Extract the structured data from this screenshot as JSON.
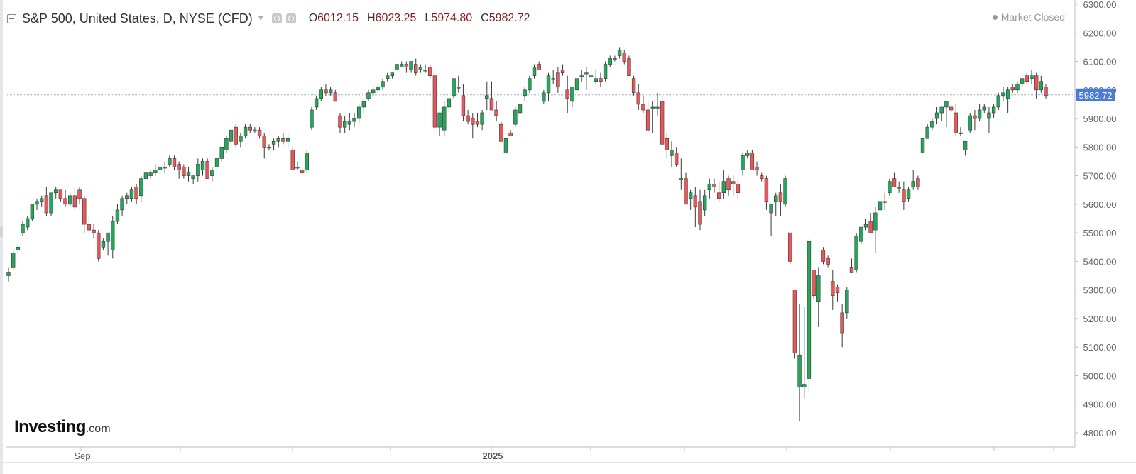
{
  "header": {
    "title": "S&P 500, United States, D, NYSE (CFD)",
    "open_label": "O",
    "open": "6012.15",
    "high_label": "H",
    "high": "6023.25",
    "low_label": "L",
    "low": "5974.80",
    "close_label": "C",
    "close": "5982.72"
  },
  "status": {
    "market": "Market Closed"
  },
  "logo": {
    "brand": "Investing",
    "suffix": ".com"
  },
  "icons": [
    "collapse-icon",
    "dropdown-caret-icon",
    "eye-icon",
    "settings-icon",
    "status-dot-icon"
  ],
  "colors": {
    "up": "#26a65b",
    "down": "#e8585b",
    "price_tag": "#4a7bd8",
    "price_line": "#9aa7e8",
    "ohlc_values": "#8b1a1a"
  },
  "chart_data": {
    "type": "candlestick",
    "title": "S&P 500, United States, D, NYSE (CFD)",
    "ylim": [
      4750,
      6300
    ],
    "y_ticks": [
      "6300.00",
      "6200.00",
      "6100.00",
      "6000.00",
      "5900.00",
      "5800.00",
      "5700.00",
      "5600.00",
      "5500.00",
      "5400.00",
      "5300.00",
      "5200.00",
      "5100.00",
      "5000.00",
      "4900.00",
      "4800.00"
    ],
    "x_labels": [
      "Sep",
      "2025"
    ],
    "last_price": "5982.72",
    "grid": false,
    "candles": [
      [
        5350,
        5380,
        5330,
        5360
      ],
      [
        5380,
        5440,
        5370,
        5430
      ],
      [
        5440,
        5460,
        5430,
        5450
      ],
      [
        5500,
        5540,
        5490,
        5530
      ],
      [
        5520,
        5560,
        5510,
        5550
      ],
      [
        5550,
        5600,
        5540,
        5600
      ],
      [
        5600,
        5620,
        5580,
        5610
      ],
      [
        5610,
        5630,
        5590,
        5620
      ],
      [
        5630,
        5660,
        5560,
        5570
      ],
      [
        5570,
        5640,
        5560,
        5640
      ],
      [
        5640,
        5660,
        5620,
        5650
      ],
      [
        5650,
        5650,
        5610,
        5620
      ],
      [
        5620,
        5650,
        5590,
        5600
      ],
      [
        5600,
        5640,
        5590,
        5630
      ],
      [
        5630,
        5660,
        5580,
        5590
      ],
      [
        5650,
        5660,
        5600,
        5620
      ],
      [
        5620,
        5630,
        5500,
        5530
      ],
      [
        5530,
        5560,
        5500,
        5510
      ],
      [
        5510,
        5530,
        5480,
        5500
      ],
      [
        5500,
        5510,
        5400,
        5410
      ],
      [
        5450,
        5480,
        5440,
        5470
      ],
      [
        5470,
        5500,
        5420,
        5500
      ],
      [
        5440,
        5560,
        5410,
        5540
      ],
      [
        5540,
        5600,
        5530,
        5580
      ],
      [
        5580,
        5630,
        5560,
        5620
      ],
      [
        5620,
        5640,
        5600,
        5630
      ],
      [
        5620,
        5660,
        5610,
        5650
      ],
      [
        5660,
        5670,
        5600,
        5620
      ],
      [
        5630,
        5700,
        5610,
        5690
      ],
      [
        5690,
        5720,
        5680,
        5710
      ],
      [
        5700,
        5720,
        5690,
        5710
      ],
      [
        5710,
        5740,
        5700,
        5720
      ],
      [
        5720,
        5740,
        5700,
        5730
      ],
      [
        5730,
        5750,
        5710,
        5730
      ],
      [
        5740,
        5770,
        5730,
        5760
      ],
      [
        5760,
        5770,
        5720,
        5730
      ],
      [
        5740,
        5750,
        5690,
        5720
      ],
      [
        5730,
        5740,
        5690,
        5700
      ],
      [
        5700,
        5730,
        5680,
        5710
      ],
      [
        5690,
        5700,
        5670,
        5700
      ],
      [
        5700,
        5760,
        5680,
        5740
      ],
      [
        5720,
        5760,
        5700,
        5750
      ],
      [
        5750,
        5760,
        5690,
        5690
      ],
      [
        5700,
        5730,
        5680,
        5720
      ],
      [
        5730,
        5780,
        5710,
        5760
      ],
      [
        5760,
        5800,
        5750,
        5800
      ],
      [
        5790,
        5840,
        5780,
        5830
      ],
      [
        5820,
        5870,
        5810,
        5860
      ],
      [
        5870,
        5880,
        5800,
        5810
      ],
      [
        5820,
        5850,
        5800,
        5840
      ],
      [
        5840,
        5880,
        5830,
        5870
      ],
      [
        5870,
        5880,
        5850,
        5860
      ],
      [
        5860,
        5870,
        5850,
        5860
      ],
      [
        5860,
        5870,
        5830,
        5840
      ],
      [
        5840,
        5850,
        5760,
        5800
      ],
      [
        5800,
        5810,
        5790,
        5800
      ],
      [
        5810,
        5830,
        5790,
        5820
      ],
      [
        5820,
        5840,
        5800,
        5830
      ],
      [
        5830,
        5850,
        5810,
        5820
      ],
      [
        5820,
        5850,
        5800,
        5830
      ],
      [
        5790,
        5800,
        5720,
        5720
      ],
      [
        5730,
        5750,
        5720,
        5730
      ],
      [
        5720,
        5730,
        5700,
        5710
      ],
      [
        5720,
        5790,
        5710,
        5780
      ],
      [
        5870,
        5940,
        5860,
        5930
      ],
      [
        5940,
        5980,
        5930,
        5970
      ],
      [
        5970,
        6010,
        5960,
        6000
      ],
      [
        6000,
        6020,
        5980,
        5990
      ],
      [
        5990,
        6010,
        5980,
        6000
      ],
      [
        5990,
        6000,
        5960,
        5960
      ],
      [
        5910,
        5920,
        5850,
        5870
      ],
      [
        5870,
        5910,
        5850,
        5890
      ],
      [
        5880,
        5920,
        5860,
        5890
      ],
      [
        5890,
        5920,
        5870,
        5900
      ],
      [
        5900,
        5950,
        5880,
        5940
      ],
      [
        5940,
        5970,
        5920,
        5960
      ],
      [
        5970,
        6000,
        5960,
        5990
      ],
      [
        5990,
        6010,
        5980,
        6000
      ],
      [
        6000,
        6020,
        5990,
        6010
      ],
      [
        6010,
        6040,
        6000,
        6030
      ],
      [
        6040,
        6060,
        6030,
        6050
      ],
      [
        6050,
        6060,
        6040,
        6060
      ],
      [
        6070,
        6090,
        6070,
        6090
      ],
      [
        6080,
        6100,
        6080,
        6090
      ],
      [
        6090,
        6100,
        6060,
        6080
      ],
      [
        6070,
        6100,
        6060,
        6100
      ],
      [
        6090,
        6110,
        6050,
        6060
      ],
      [
        6070,
        6090,
        6060,
        6080
      ],
      [
        6070,
        6090,
        6060,
        6070
      ],
      [
        6080,
        6090,
        6040,
        6050
      ],
      [
        6050,
        6070,
        5860,
        5870
      ],
      [
        5870,
        5920,
        5840,
        5920
      ],
      [
        5860,
        5960,
        5840,
        5940
      ],
      [
        5940,
        5970,
        5920,
        5970
      ],
      [
        5980,
        6040,
        5970,
        6040
      ],
      [
        6010,
        6050,
        5990,
        6010
      ],
      [
        5980,
        6020,
        5890,
        5910
      ],
      [
        5910,
        5930,
        5880,
        5890
      ],
      [
        5900,
        5920,
        5830,
        5880
      ],
      [
        5890,
        5920,
        5870,
        5880
      ],
      [
        5880,
        5930,
        5860,
        5920
      ],
      [
        5970,
        6030,
        5930,
        5980
      ],
      [
        5970,
        6030,
        5930,
        5930
      ],
      [
        5930,
        5960,
        5890,
        5910
      ],
      [
        5880,
        5890,
        5820,
        5820
      ],
      [
        5780,
        5850,
        5770,
        5830
      ],
      [
        5850,
        5860,
        5840,
        5840
      ],
      [
        5880,
        5940,
        5870,
        5930
      ],
      [
        5920,
        5960,
        5910,
        5950
      ],
      [
        5980,
        6010,
        5960,
        6000
      ],
      [
        6000,
        6050,
        5990,
        6040
      ],
      [
        6050,
        6090,
        6040,
        6080
      ],
      [
        6090,
        6100,
        6070,
        6070
      ],
      [
        5960,
        6000,
        5950,
        5990
      ],
      [
        5990,
        6060,
        5960,
        6050
      ],
      [
        6040,
        6070,
        6020,
        6040
      ],
      [
        6060,
        6080,
        5990,
        6010
      ],
      [
        6070,
        6090,
        6050,
        6060
      ],
      [
        6000,
        6050,
        5920,
        5970
      ],
      [
        5960,
        6010,
        5940,
        6010
      ],
      [
        6000,
        6050,
        5980,
        6040
      ],
      [
        6050,
        6070,
        6030,
        6050
      ],
      [
        6060,
        6080,
        6000,
        6060
      ],
      [
        6050,
        6070,
        6040,
        6050
      ],
      [
        6030,
        6070,
        6020,
        6040
      ],
      [
        6040,
        6060,
        6010,
        6030
      ],
      [
        6040,
        6100,
        6030,
        6090
      ],
      [
        6090,
        6120,
        6080,
        6110
      ],
      [
        6110,
        6120,
        6100,
        6110
      ],
      [
        6120,
        6150,
        6110,
        6140
      ],
      [
        6130,
        6140,
        6090,
        6100
      ],
      [
        6110,
        6120,
        6050,
        6050
      ],
      [
        6040,
        6050,
        5980,
        5990
      ],
      [
        5990,
        6020,
        5930,
        5950
      ],
      [
        5950,
        5980,
        5920,
        5930
      ],
      [
        5930,
        5960,
        5850,
        5860
      ],
      [
        5940,
        5960,
        5850,
        5940
      ],
      [
        5940,
        5990,
        5910,
        5940
      ],
      [
        5960,
        5980,
        5810,
        5810
      ],
      [
        5830,
        5850,
        5760,
        5790
      ],
      [
        5770,
        5820,
        5730,
        5790
      ],
      [
        5780,
        5800,
        5730,
        5740
      ],
      [
        5690,
        5760,
        5650,
        5690
      ],
      [
        5690,
        5710,
        5600,
        5600
      ],
      [
        5620,
        5650,
        5580,
        5640
      ],
      [
        5630,
        5660,
        5520,
        5590
      ],
      [
        5610,
        5650,
        5510,
        5530
      ],
      [
        5580,
        5650,
        5560,
        5630
      ],
      [
        5650,
        5690,
        5620,
        5670
      ],
      [
        5670,
        5690,
        5640,
        5660
      ],
      [
        5640,
        5680,
        5610,
        5620
      ],
      [
        5640,
        5720,
        5620,
        5680
      ],
      [
        5690,
        5700,
        5630,
        5650
      ],
      [
        5680,
        5700,
        5630,
        5670
      ],
      [
        5670,
        5690,
        5620,
        5640
      ],
      [
        5720,
        5780,
        5700,
        5770
      ],
      [
        5770,
        5790,
        5760,
        5780
      ],
      [
        5780,
        5790,
        5720,
        5720
      ],
      [
        5730,
        5750,
        5700,
        5720
      ],
      [
        5700,
        5710,
        5680,
        5690
      ],
      [
        5690,
        5700,
        5580,
        5610
      ],
      [
        5570,
        5600,
        5490,
        5600
      ],
      [
        5610,
        5640,
        5560,
        5630
      ],
      [
        5640,
        5670,
        5560,
        5610
      ],
      [
        5600,
        5700,
        5590,
        5690
      ],
      [
        5500,
        5500,
        5390,
        5400
      ],
      [
        5300,
        5300,
        5060,
        5080
      ],
      [
        4960,
        5250,
        4840,
        5070
      ],
      [
        4960,
        5240,
        4920,
        4970
      ],
      [
        4990,
        5480,
        4940,
        5470
      ],
      [
        5370,
        5370,
        5270,
        5280
      ],
      [
        5260,
        5380,
        5170,
        5350
      ],
      [
        5440,
        5450,
        5390,
        5400
      ],
      [
        5410,
        5420,
        5380,
        5390
      ],
      [
        5330,
        5370,
        5230,
        5280
      ],
      [
        5310,
        5320,
        5260,
        5290
      ],
      [
        5220,
        5250,
        5100,
        5150
      ],
      [
        5220,
        5310,
        5200,
        5300
      ],
      [
        5380,
        5410,
        5360,
        5360
      ],
      [
        5370,
        5500,
        5360,
        5490
      ],
      [
        5470,
        5520,
        5460,
        5520
      ],
      [
        5520,
        5550,
        5510,
        5530
      ],
      [
        5540,
        5570,
        5500,
        5500
      ],
      [
        5510,
        5590,
        5430,
        5570
      ],
      [
        5580,
        5610,
        5560,
        5610
      ],
      [
        5610,
        5640,
        5580,
        5610
      ],
      [
        5640,
        5690,
        5630,
        5680
      ],
      [
        5690,
        5710,
        5660,
        5660
      ],
      [
        5660,
        5680,
        5640,
        5660
      ],
      [
        5650,
        5680,
        5580,
        5610
      ],
      [
        5620,
        5660,
        5610,
        5650
      ],
      [
        5660,
        5720,
        5650,
        5680
      ],
      [
        5690,
        5700,
        5650,
        5660
      ],
      [
        5780,
        5830,
        5780,
        5830
      ],
      [
        5830,
        5880,
        5830,
        5870
      ],
      [
        5870,
        5900,
        5860,
        5890
      ],
      [
        5900,
        5940,
        5880,
        5920
      ],
      [
        5920,
        5940,
        5890,
        5940
      ],
      [
        5940,
        5960,
        5870,
        5960
      ],
      [
        5940,
        5950,
        5920,
        5930
      ],
      [
        5920,
        5950,
        5840,
        5850
      ],
      [
        5850,
        5870,
        5840,
        5850
      ],
      [
        5790,
        5820,
        5770,
        5820
      ],
      [
        5860,
        5920,
        5850,
        5910
      ],
      [
        5910,
        5930,
        5860,
        5900
      ],
      [
        5900,
        5950,
        5890,
        5930
      ],
      [
        5930,
        5950,
        5920,
        5940
      ],
      [
        5900,
        5940,
        5850,
        5920
      ],
      [
        5920,
        5950,
        5900,
        5940
      ],
      [
        5940,
        5990,
        5930,
        5980
      ],
      [
        5980,
        6010,
        5960,
        5990
      ],
      [
        5970,
        6010,
        5920,
        6000
      ],
      [
        6010,
        6020,
        5990,
        6000
      ],
      [
        6000,
        6030,
        5990,
        6020
      ],
      [
        6020,
        6050,
        6010,
        6040
      ],
      [
        6050,
        6060,
        6020,
        6030
      ],
      [
        6040,
        6070,
        6020,
        6050
      ],
      [
        6050,
        6060,
        5970,
        6000
      ],
      [
        6000,
        6050,
        5990,
        6030
      ],
      [
        6010,
        6020,
        5970,
        5980
      ]
    ]
  }
}
